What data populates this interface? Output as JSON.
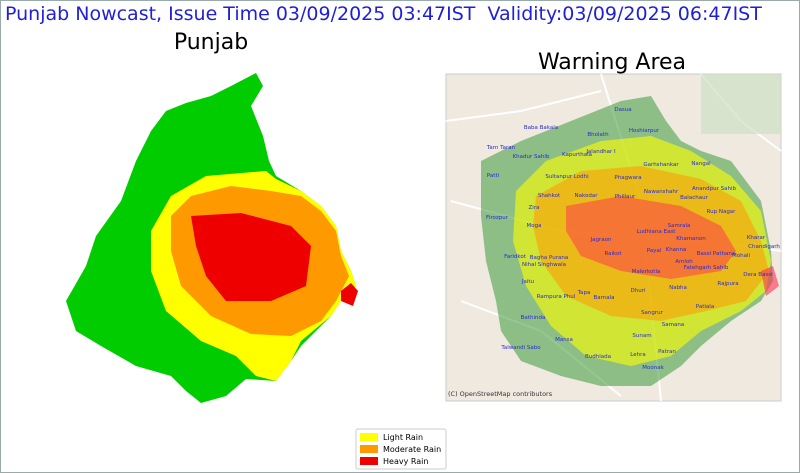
{
  "header": {
    "title": "Punjab Nowcast, Issue Time 03/09/2025 03:47IST  Validity:03/09/2025 06:47IST"
  },
  "left_map": {
    "title": "Punjab"
  },
  "right_map": {
    "title": "Warning Area",
    "attribution": "(C) OpenStreetMap contributors",
    "places": [
      "Dasua",
      "Baba Bakala",
      "Bholath",
      "Hoshiarpur",
      "Tarn Taran",
      "Khadur Sahib",
      "Kapurthala",
      "Jalandhar I",
      "Garhshankar",
      "Nangal",
      "Patti",
      "Sultanpur Lodhi",
      "Phagwara",
      "Nawanshahr",
      "Anandpur Sahib",
      "Shahkot",
      "Nakodar",
      "Phillaur",
      "Balachaur",
      "Zira",
      "Rup Nagar",
      "Firozpur",
      "Moga",
      "Ludhiana East",
      "Samrala",
      "Kharar",
      "Jagraon",
      "Khamanon",
      "Chandigarh",
      "Payal",
      "Khanna",
      "Bassi Pathana",
      "Mohali",
      "Raikot",
      "Amloh",
      "Faridkot",
      "Bagha Purana",
      "Nihal Singhwala",
      "Fatehgarh Sahib",
      "Dera Bassi",
      "Malerkotla",
      "Jaitu",
      "Rampura Phul",
      "Dhuri",
      "Nabha",
      "Rajpura",
      "Tapa",
      "Barnala",
      "Patiala",
      "Bathinda",
      "Sangrur",
      "Samana",
      "Mansa",
      "Talwandi Sabo",
      "Sunam",
      "Budhlada",
      "Lehra",
      "Patran",
      "Moonak"
    ]
  },
  "legend": {
    "items": [
      {
        "label": "Light Rain",
        "color": "#ffff00"
      },
      {
        "label": "Moderate Rain",
        "color": "#ff9900"
      },
      {
        "label": "Heavy Rain",
        "color": "#ee0000"
      }
    ]
  }
}
